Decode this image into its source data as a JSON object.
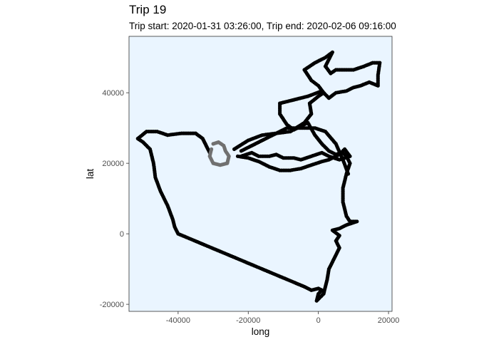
{
  "chart_data": {
    "type": "scatter",
    "title": "Trip 19",
    "subtitle": "Trip start: 2020-01-31 03:26:00, Trip end: 2020-02-06 09:16:00",
    "xlabel": "long",
    "ylabel": "lat",
    "xlim": [
      -54000,
      21000
    ],
    "ylim": [
      -22000,
      56000
    ],
    "x_ticks": [
      -40000,
      -20000,
      0,
      20000
    ],
    "x_tick_labels": [
      "-40000",
      "-20000",
      "0",
      "20000"
    ],
    "y_ticks": [
      -20000,
      0,
      20000,
      40000
    ],
    "y_tick_labels": [
      "-20000",
      "0",
      "20000",
      "40000"
    ],
    "grid": false,
    "panel_color": "#eaf5ff",
    "series": [
      {
        "color": "#000000",
        "marker": "point",
        "path": [
          [
            -23000,
            22000
          ],
          [
            -20000,
            21500
          ],
          [
            -17000,
            20500
          ],
          [
            -14000,
            19000
          ],
          [
            -11000,
            18000
          ],
          [
            -8000,
            18000
          ],
          [
            -5000,
            18500
          ],
          [
            -2000,
            19500
          ],
          [
            1000,
            20500
          ],
          [
            3000,
            21000
          ],
          [
            5000,
            22000
          ],
          [
            7000,
            23000
          ],
          [
            8000,
            22000
          ],
          [
            9000,
            20000
          ],
          [
            8000,
            17000
          ],
          [
            7000,
            13000
          ],
          [
            7000,
            9000
          ],
          [
            8000,
            5000
          ],
          [
            9000,
            3500
          ],
          [
            11000,
            3500
          ],
          [
            8000,
            2500
          ],
          [
            6000,
            1500
          ],
          [
            4000,
            1000
          ],
          [
            6000,
            -500
          ],
          [
            5000,
            -2000
          ],
          [
            6000,
            -4000
          ],
          [
            5000,
            -6000
          ],
          [
            4000,
            -8000
          ],
          [
            3000,
            -10000
          ],
          [
            2500,
            -13000
          ],
          [
            2000,
            -15000
          ],
          [
            1500,
            -17000
          ],
          [
            500,
            -18000
          ],
          [
            -500,
            -19000
          ],
          [
            0,
            -17000
          ],
          [
            1000,
            -16000
          ],
          [
            0,
            -15500
          ],
          [
            -2000,
            -16000
          ],
          [
            -4000,
            -15000
          ],
          [
            -10000,
            -12500
          ],
          [
            -16000,
            -10000
          ],
          [
            -22000,
            -7500
          ],
          [
            -28000,
            -5000
          ],
          [
            -34000,
            -2500
          ],
          [
            -40000,
            0
          ],
          [
            -41000,
            2000
          ],
          [
            -41500,
            4000
          ],
          [
            -43000,
            8000
          ],
          [
            -45000,
            12000
          ],
          [
            -46500,
            16000
          ],
          [
            -47000,
            20000
          ],
          [
            -48000,
            24000
          ],
          [
            -50000,
            26000
          ],
          [
            -51500,
            27000
          ],
          [
            -49000,
            29000
          ],
          [
            -46000,
            29000
          ],
          [
            -43000,
            28000
          ],
          [
            -39000,
            28500
          ],
          [
            -35000,
            28500
          ],
          [
            -33000,
            27000
          ],
          [
            -32000,
            25000
          ],
          [
            -31000,
            23000
          ]
        ]
      },
      {
        "color": "#000000",
        "marker": "point",
        "path": [
          [
            -24000,
            24000
          ],
          [
            -20000,
            26500
          ],
          [
            -16000,
            28000
          ],
          [
            -12000,
            28500
          ],
          [
            -8000,
            29000
          ],
          [
            -4000,
            31500
          ],
          [
            -2000,
            34000
          ],
          [
            -2500,
            37000
          ],
          [
            0,
            39000
          ],
          [
            1500,
            40000
          ],
          [
            0,
            42000
          ],
          [
            -2000,
            43500
          ],
          [
            -4000,
            46500
          ],
          [
            -1000,
            48500
          ],
          [
            2000,
            50000
          ],
          [
            4000,
            51500
          ],
          [
            2000,
            47500
          ],
          [
            3500,
            45500
          ],
          [
            5000,
            46500
          ],
          [
            7000,
            46500
          ],
          [
            10000,
            46500
          ],
          [
            13000,
            47500
          ],
          [
            15500,
            48500
          ],
          [
            17500,
            48500
          ],
          [
            17000,
            45000
          ],
          [
            17000,
            42000
          ],
          [
            14500,
            43000
          ],
          [
            12000,
            42000
          ],
          [
            10000,
            41500
          ],
          [
            8000,
            40500
          ],
          [
            5000,
            40000
          ],
          [
            3000,
            38500
          ],
          [
            1000,
            40500
          ],
          [
            -3000,
            39000
          ],
          [
            -7000,
            38000
          ],
          [
            -11000,
            37000
          ],
          [
            -11000,
            34000
          ],
          [
            -9000,
            31000
          ],
          [
            -7000,
            29500
          ],
          [
            -5000,
            30500
          ],
          [
            -3000,
            31500
          ],
          [
            -1000,
            28000
          ],
          [
            1000,
            25500
          ],
          [
            3000,
            23500
          ],
          [
            5000,
            22500
          ],
          [
            6500,
            23000
          ],
          [
            7500,
            24000
          ],
          [
            9000,
            22000
          ],
          [
            6000,
            21000
          ],
          [
            3000,
            22000
          ],
          [
            1000,
            23000
          ],
          [
            -2000,
            22000
          ],
          [
            -5000,
            21000
          ],
          [
            -7000,
            21500
          ],
          [
            -10000,
            21500
          ],
          [
            -12000,
            22500
          ],
          [
            -14000,
            22000
          ],
          [
            -17000,
            22000
          ],
          [
            -19000,
            23000
          ],
          [
            -22000,
            22000
          ]
        ]
      },
      {
        "color": "#000000",
        "marker": "point",
        "path": [
          [
            -22000,
            23500
          ],
          [
            -17000,
            26000
          ],
          [
            -12000,
            28500
          ],
          [
            -9000,
            30000
          ],
          [
            -5000,
            30000
          ],
          [
            -1000,
            30000
          ],
          [
            2000,
            29000
          ],
          [
            5000,
            25500
          ],
          [
            7000,
            21000
          ],
          [
            8500,
            17000
          ]
        ]
      },
      {
        "color": "#707070",
        "marker": "point",
        "path": [
          [
            -30500,
            24000
          ],
          [
            -31000,
            22000
          ],
          [
            -30000,
            20000
          ],
          [
            -28000,
            19500
          ],
          [
            -26000,
            20000
          ],
          [
            -25500,
            22000
          ],
          [
            -26500,
            23500
          ],
          [
            -27000,
            25000
          ],
          [
            -28500,
            26000
          ],
          [
            -30000,
            25500
          ]
        ]
      }
    ]
  }
}
